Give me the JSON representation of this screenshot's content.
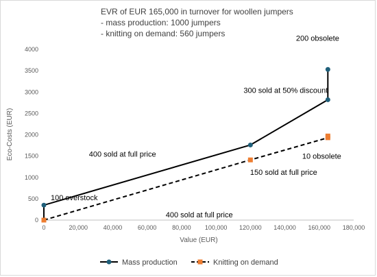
{
  "chart_data": {
    "type": "line",
    "title_lines": [
      "EVR of EUR 165,000 in turnover for woollen jumpers",
      "- mass production: 1000 jumpers",
      "- knitting on demand: 560 jumpers"
    ],
    "xlabel": "Value (EUR)",
    "ylabel": "Eco-Costs (EUR)",
    "xlim": [
      0,
      180000
    ],
    "ylim": [
      0,
      4000
    ],
    "x_ticks": [
      0,
      20000,
      40000,
      60000,
      80000,
      100000,
      120000,
      140000,
      160000,
      180000
    ],
    "x_tick_labels": [
      "0",
      "20,000",
      "40,000",
      "60,000",
      "80,000",
      "100,000",
      "120,000",
      "140,000",
      "160,000",
      "180,000"
    ],
    "y_ticks": [
      0,
      500,
      1000,
      1500,
      2000,
      2500,
      3000,
      3500,
      4000
    ],
    "y_tick_labels": [
      "0",
      "500",
      "1000",
      "1500",
      "2000",
      "2500",
      "3000",
      "3500",
      "4000"
    ],
    "grid": false,
    "legend_position": "bottom",
    "series": [
      {
        "name": "Mass production",
        "color": "#000000",
        "marker_color": "#1f5f7a",
        "line_style": "solid",
        "points": [
          [
            0,
            0
          ],
          [
            0,
            350
          ],
          [
            120000,
            1760
          ],
          [
            165000,
            2820
          ],
          [
            165000,
            3530
          ]
        ]
      },
      {
        "name": "Knitting on demand",
        "color": "#000000",
        "marker_color": "#ed7d31",
        "line_style": "dashed",
        "points": [
          [
            0,
            0
          ],
          [
            120000,
            1410
          ],
          [
            165000,
            1930
          ],
          [
            165000,
            1970
          ]
        ]
      }
    ],
    "annotations": [
      {
        "text": "100 overstock",
        "x": 0,
        "y": 175
      },
      {
        "text": "400 sold at full price",
        "x": 60000,
        "y": 1055
      },
      {
        "text": "300 sold at 50% discount",
        "x": 142500,
        "y": 2290
      },
      {
        "text": "200 obsolete",
        "x": 165000,
        "y": 3175
      },
      {
        "text": "10 obsolete",
        "x": 165000,
        "y": 1950
      },
      {
        "text": "150 sold at full price",
        "x": 142500,
        "y": 1670
      },
      {
        "text": "400 sold at full price",
        "x": 60000,
        "y": 705
      }
    ]
  }
}
